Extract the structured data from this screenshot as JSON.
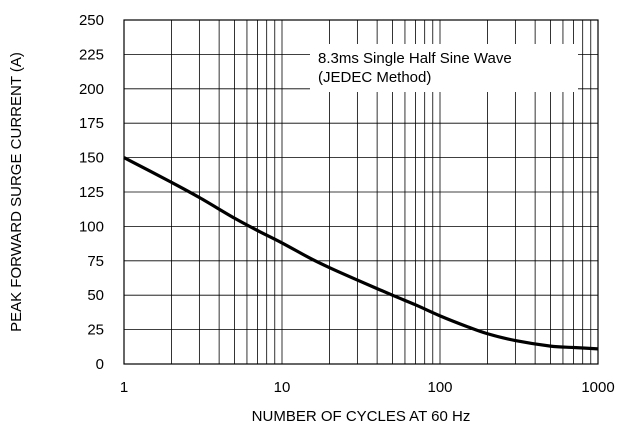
{
  "chart_data": {
    "type": "line",
    "title": "",
    "xlabel": "NUMBER OF CYCLES AT 60 Hz",
    "ylabel": "PEAK FORWARD SURGE CURRENT (A)",
    "x_scale": "log",
    "xlim": [
      1,
      1000
    ],
    "ylim": [
      0,
      250
    ],
    "grid": true,
    "x_ticks": [
      {
        "value": 1,
        "label": "1"
      },
      {
        "value": 10,
        "label": "10"
      },
      {
        "value": 100,
        "label": "100"
      },
      {
        "value": 1000,
        "label": "1000"
      }
    ],
    "y_ticks": [
      {
        "value": 0,
        "label": "0"
      },
      {
        "value": 25,
        "label": "25"
      },
      {
        "value": 50,
        "label": "50"
      },
      {
        "value": 75,
        "label": "75"
      },
      {
        "value": 100,
        "label": "100"
      },
      {
        "value": 125,
        "label": "125"
      },
      {
        "value": 150,
        "label": "150"
      },
      {
        "value": 175,
        "label": "175"
      },
      {
        "value": 200,
        "label": "200"
      },
      {
        "value": 225,
        "label": "225"
      },
      {
        "value": 250,
        "label": "250"
      }
    ],
    "annotation": {
      "lines": [
        "8.3ms Single Half Sine Wave",
        "(JEDEC Method)"
      ]
    },
    "series": [
      {
        "x": [
          1,
          2,
          3,
          5,
          7,
          10,
          15,
          20,
          30,
          50,
          70,
          100,
          150,
          200,
          300,
          500,
          700,
          1000
        ],
        "y": [
          150,
          132,
          121,
          106,
          97,
          88,
          77,
          70,
          61,
          50,
          43,
          35,
          27,
          22,
          17,
          13,
          12,
          11
        ]
      }
    ]
  }
}
